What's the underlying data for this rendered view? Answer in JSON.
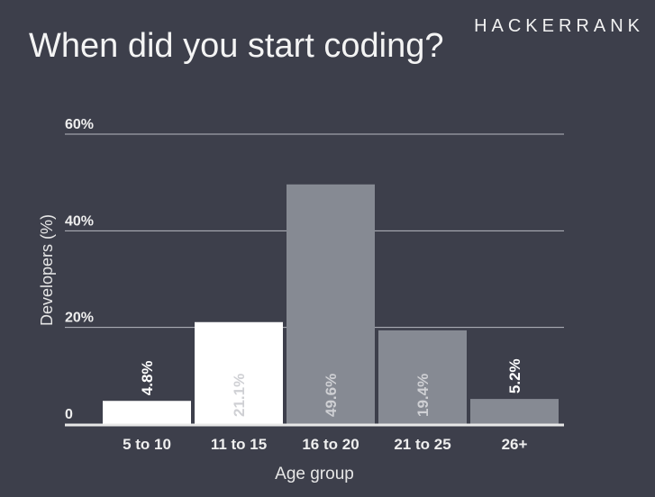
{
  "brand": "HACKERRANK",
  "title": "When did you start coding?",
  "chart_data": {
    "type": "bar",
    "title": "When did you start coding?",
    "xlabel": "Age group",
    "ylabel": "Developers (%)",
    "categories": [
      "5 to 10",
      "11 to 15",
      "16 to 20",
      "21 to 25",
      "26+"
    ],
    "values": [
      4.8,
      21.1,
      49.6,
      19.4,
      5.2
    ],
    "value_labels": [
      "4.8%",
      "21.1%",
      "49.6%",
      "19.4%",
      "5.2%"
    ],
    "bar_colors": [
      "#ffffff",
      "#ffffff",
      "#868a93",
      "#868a93",
      "#868a93"
    ],
    "value_label_colors": [
      "#ffffff",
      "#cfd0d4",
      "#cfd0d4",
      "#cfd0d4",
      "#ffffff"
    ],
    "ylim": [
      0,
      60
    ],
    "yticks": [
      0,
      20,
      40,
      60
    ],
    "ytick_labels": [
      "0",
      "20%",
      "40%",
      "60%"
    ],
    "grid": true,
    "legend": "none"
  }
}
